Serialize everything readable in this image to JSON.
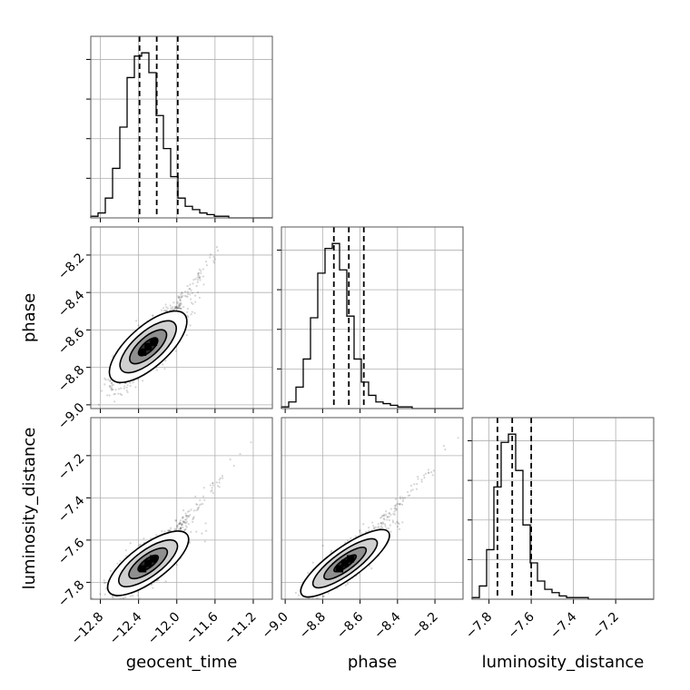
{
  "chart_data": {
    "type": "corner",
    "grid": true,
    "parameters": [
      {
        "name": "geocent_time",
        "range": [
          -12.9,
          -11.0
        ],
        "ticks": [
          -12.8,
          -12.4,
          -12.0,
          -11.6,
          -11.2
        ],
        "tick_labels": [
          "−12.8",
          "−12.4",
          "−12.0",
          "−11.6",
          "−11.2"
        ],
        "quantiles": [
          -12.39,
          -12.21,
          -11.99
        ]
      },
      {
        "name": "phase",
        "range": [
          -9.02,
          -8.05
        ],
        "ticks": [
          -9.0,
          -8.8,
          -8.6,
          -8.4,
          -8.2
        ],
        "tick_labels": [
          "−9.0",
          "−8.8",
          "−8.6",
          "−8.4",
          "−8.2"
        ],
        "quantiles": [
          -8.74,
          -8.66,
          -8.58
        ]
      },
      {
        "name": "luminosity_distance",
        "range": [
          -7.88,
          -7.02
        ],
        "ticks": [
          -7.8,
          -7.6,
          -7.4,
          -7.2
        ],
        "tick_labels": [
          "−7.8",
          "−7.6",
          "−7.4",
          "−7.2"
        ],
        "quantiles": [
          -7.76,
          -7.69,
          -7.6
        ]
      }
    ],
    "histograms": [
      {
        "parameter": "geocent_time",
        "bin_start": -12.9,
        "bin_width": 0.076,
        "counts": [
          1,
          3,
          12,
          30,
          55,
          85,
          98,
          100,
          88,
          62,
          42,
          25,
          12,
          7,
          5,
          3,
          2,
          1,
          1,
          0,
          0,
          0,
          0,
          0,
          0
        ]
      },
      {
        "parameter": "phase",
        "bin_start": -9.02,
        "bin_width": 0.0388,
        "counts": [
          1,
          4,
          13,
          30,
          55,
          82,
          97,
          100,
          84,
          56,
          30,
          16,
          8,
          4,
          3,
          2,
          1,
          1,
          0,
          0,
          0,
          0,
          0,
          0,
          0
        ]
      },
      {
        "parameter": "luminosity_distance",
        "bin_start": -7.88,
        "bin_width": 0.0344,
        "counts": [
          1,
          8,
          30,
          68,
          95,
          100,
          78,
          45,
          22,
          11,
          6,
          4,
          2,
          1,
          1,
          1,
          0,
          0,
          0,
          0,
          0,
          0,
          0,
          0,
          0
        ]
      }
    ],
    "pairs": [
      {
        "x": "geocent_time",
        "y": "phase",
        "center": [
          -12.3,
          -8.69
        ],
        "sigma": [
          0.18,
          0.1
        ],
        "correlation": 0.82
      },
      {
        "x": "geocent_time",
        "y": "luminosity_distance",
        "center": [
          -12.3,
          -7.71
        ],
        "sigma": [
          0.18,
          0.075
        ],
        "correlation": 0.8
      },
      {
        "x": "phase",
        "y": "luminosity_distance",
        "center": [
          -8.68,
          -7.71
        ],
        "sigma": [
          0.1,
          0.075
        ],
        "correlation": 0.85
      }
    ]
  }
}
